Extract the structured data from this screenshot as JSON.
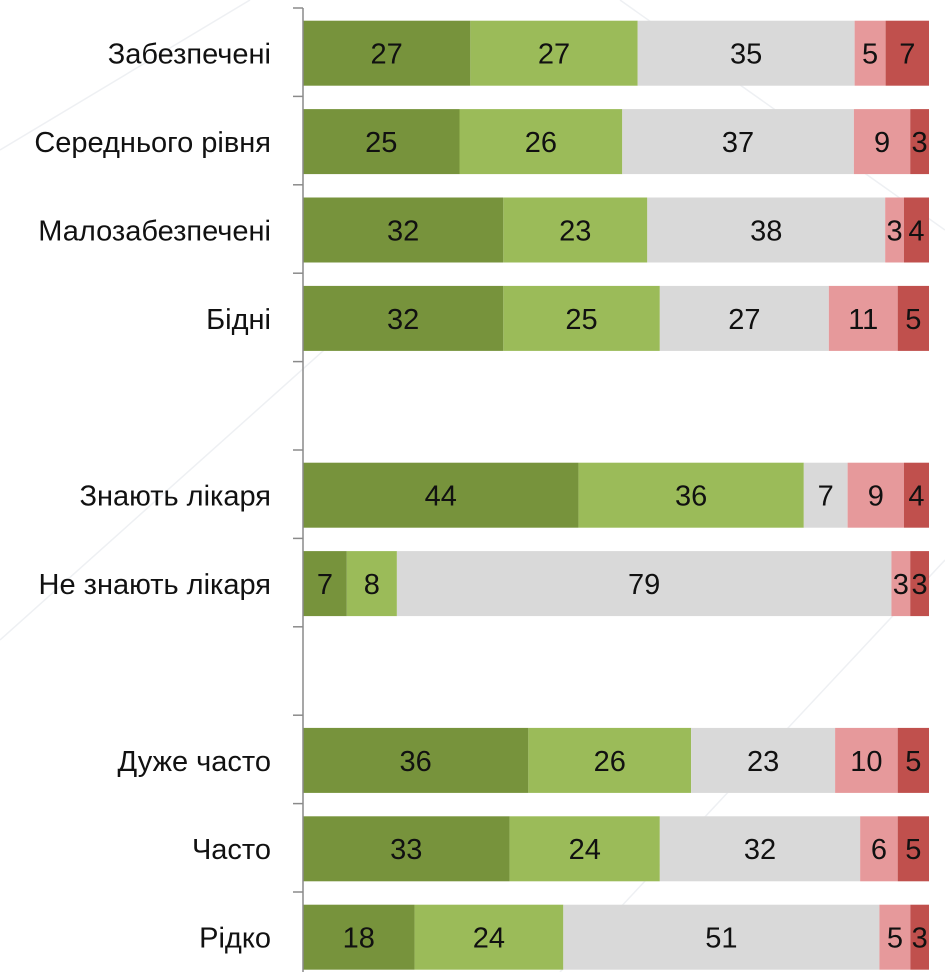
{
  "chart_data": {
    "type": "bar",
    "orientation": "horizontal",
    "stacked": true,
    "title": "",
    "xlabel": "",
    "ylabel": "",
    "grid": false,
    "legend": "none",
    "categories": [
      "Забезпечені",
      "Середнього рівня",
      "Малозабезпечені",
      "Бідні",
      "",
      "Знають лікаря",
      "Не знають лікаря",
      "",
      "Дуже часто",
      "Часто",
      "Рідко"
    ],
    "series": [
      {
        "color": "#77933c",
        "values": [
          27,
          25,
          32,
          32,
          null,
          44,
          7,
          null,
          36,
          33,
          18
        ]
      },
      {
        "color": "#9bbb59",
        "values": [
          27,
          26,
          23,
          25,
          null,
          36,
          8,
          null,
          26,
          24,
          24
        ]
      },
      {
        "color": "#d9d9d9",
        "values": [
          35,
          37,
          38,
          27,
          null,
          7,
          79,
          null,
          23,
          32,
          51
        ]
      },
      {
        "color": "#e6999b",
        "values": [
          5,
          9,
          3,
          11,
          null,
          9,
          3,
          null,
          10,
          6,
          5
        ]
      },
      {
        "color": "#c0504d",
        "values": [
          7,
          3,
          4,
          5,
          null,
          4,
          3,
          null,
          5,
          5,
          3
        ]
      }
    ],
    "data_labels": true
  }
}
